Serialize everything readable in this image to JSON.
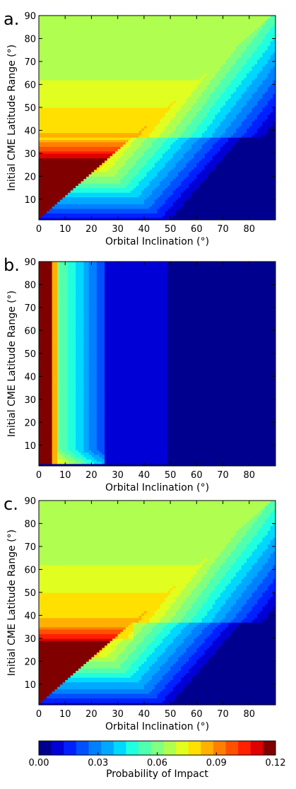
{
  "colors": {
    "jet": [
      "#00008f",
      "#0000d6",
      "#0020ff",
      "#0050ff",
      "#0080ff",
      "#00a8ff",
      "#00d8ff",
      "#20ffdf",
      "#50ffaf",
      "#80ff80",
      "#b0ff50",
      "#e0ff20",
      "#ffe000",
      "#ffb000",
      "#ff8000",
      "#ff5000",
      "#ff2000",
      "#df0000",
      "#800000"
    ],
    "background": "#ffffff"
  },
  "chart_data": [
    {
      "type": "heatmap",
      "panel_label": "a.",
      "xlabel": "Orbital Inclination (°)",
      "ylabel": "Initial CME Latitude Range (°)",
      "xlim": [
        0,
        90
      ],
      "ylim": [
        1,
        90
      ],
      "xticks": [
        "0",
        "10",
        "20",
        "30",
        "40",
        "50",
        "60",
        "70",
        "80"
      ],
      "yticks": [
        "10",
        "20",
        "30",
        "40",
        "50",
        "60",
        "70",
        "80",
        "90"
      ],
      "model": "diagonal",
      "params": {
        "wedge_pmax": 0.125,
        "far_pmax": 0.062
      }
    },
    {
      "type": "heatmap",
      "panel_label": "b.",
      "xlabel": "Orbital Inclination (°)",
      "ylabel": "Initial CME Latitude Range (°)",
      "xlim": [
        0,
        90
      ],
      "ylim": [
        1,
        90
      ],
      "xticks": [
        "0",
        "10",
        "20",
        "30",
        "40",
        "50",
        "60",
        "70",
        "80"
      ],
      "yticks": [
        "10",
        "20",
        "30",
        "40",
        "50",
        "60",
        "70",
        "80",
        "90"
      ],
      "model": "vertical",
      "params": {}
    },
    {
      "type": "heatmap",
      "panel_label": "c.",
      "xlabel": "Orbital Inclination (°)",
      "ylabel": "Initial CME Latitude Range (°)",
      "xlim": [
        0,
        90
      ],
      "ylim": [
        1,
        90
      ],
      "xticks": [
        "0",
        "10",
        "20",
        "30",
        "40",
        "50",
        "60",
        "70",
        "80"
      ],
      "yticks": [
        "10",
        "20",
        "30",
        "40",
        "50",
        "60",
        "70",
        "80",
        "90"
      ],
      "model": "diagonal",
      "params": {
        "wedge_pmax": 0.128,
        "far_pmax": 0.06,
        "kink": true
      }
    },
    {
      "type": "colorbar",
      "label": "Probability of Impact",
      "range": [
        0.0,
        0.12
      ],
      "ticks": [
        "0.00",
        "0.03",
        "0.06",
        "0.09",
        "0.12"
      ],
      "levels": 19
    }
  ]
}
